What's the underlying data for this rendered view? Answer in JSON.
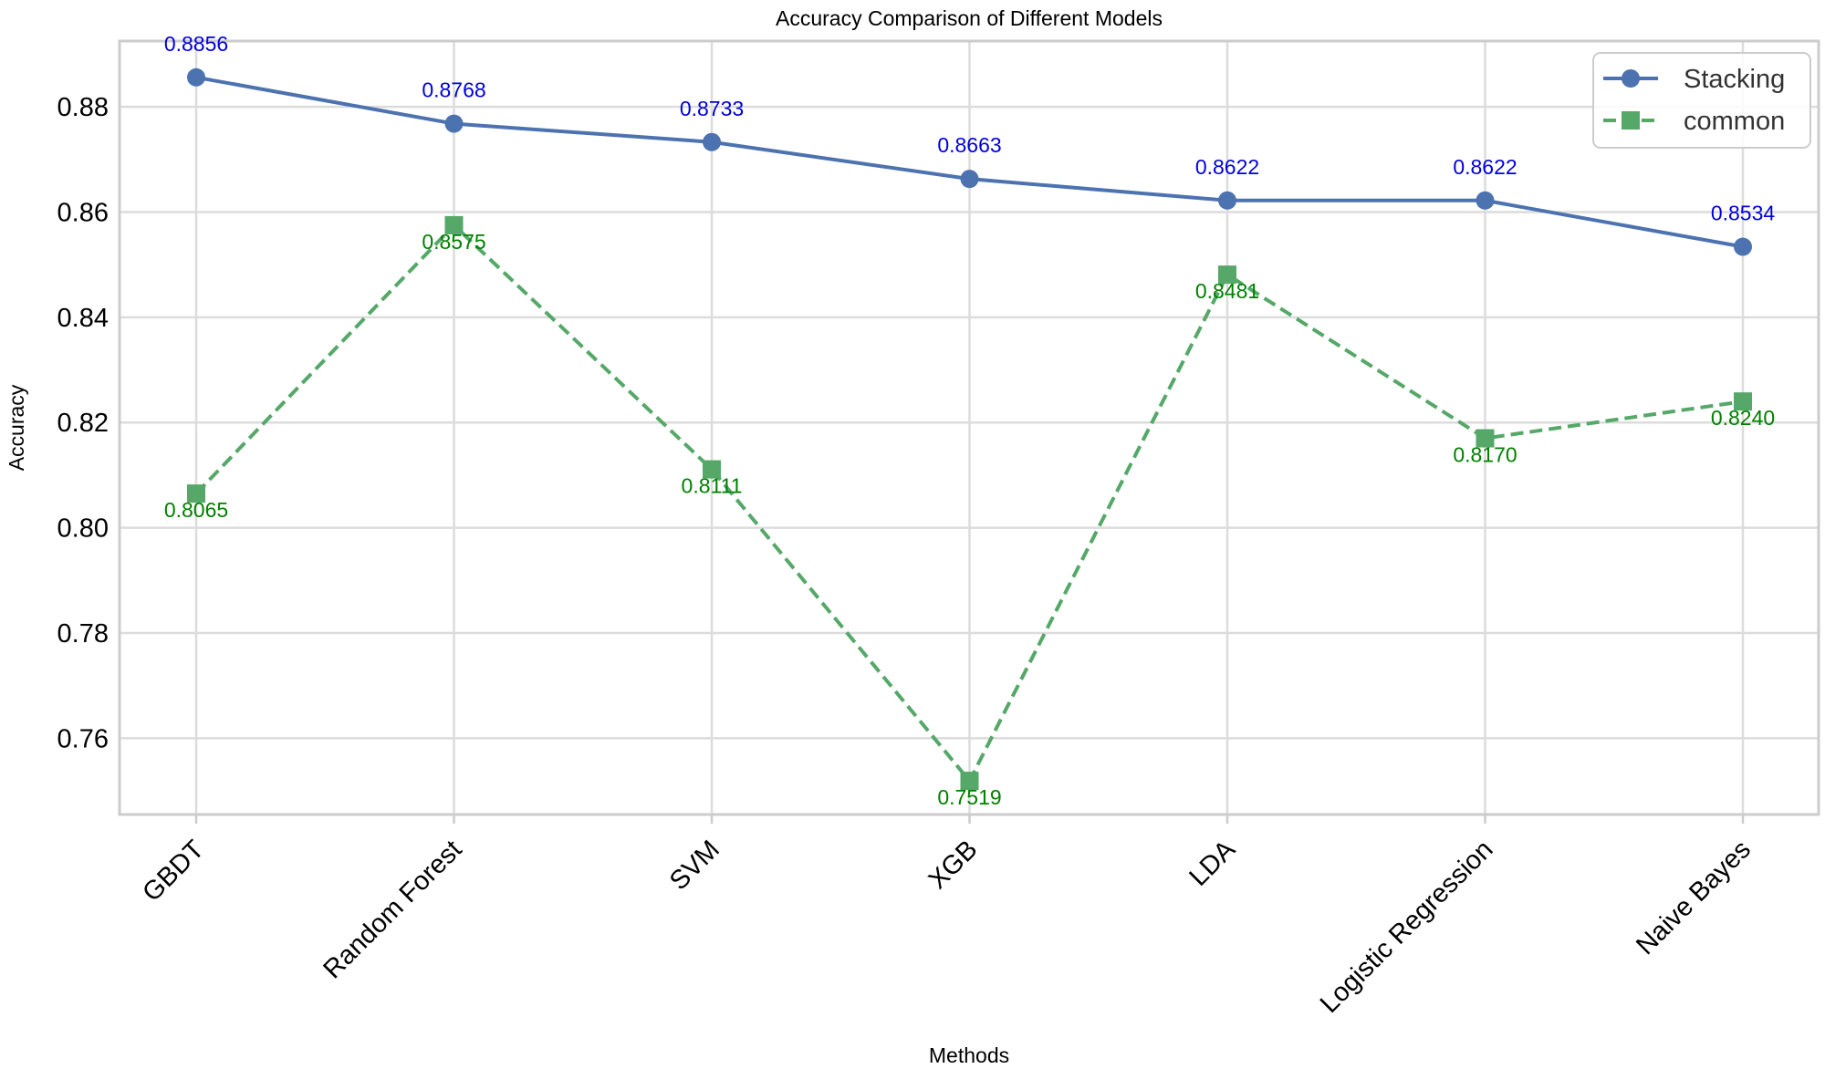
{
  "chart_data": {
    "type": "line",
    "title": "Accuracy Comparison of Different Models",
    "xlabel": "Methods",
    "ylabel": "Accuracy",
    "categories": [
      "GBDT",
      "Random Forest",
      "SVM",
      "XGB",
      "LDA",
      "Logistic Regression",
      "Naive Bayes"
    ],
    "ylim": [
      0.7455,
      0.8925
    ],
    "yticks": [
      0.76,
      0.78,
      0.8,
      0.82,
      0.84,
      0.86,
      0.88
    ],
    "ytick_labels": [
      "0.76",
      "0.78",
      "0.80",
      "0.82",
      "0.84",
      "0.86",
      "0.88"
    ],
    "grid": true,
    "legend_position": "top-right",
    "series": [
      {
        "name": "Stacking",
        "values": [
          0.8856,
          0.8768,
          0.8733,
          0.8663,
          0.8622,
          0.8622,
          0.8534
        ],
        "labels": [
          "0.8856",
          "0.8768",
          "0.8733",
          "0.8663",
          "0.8622",
          "0.8622",
          "0.8534"
        ],
        "color": "#4c72b0",
        "label_color": "#0000dd",
        "marker": "circle",
        "linestyle": "solid"
      },
      {
        "name": "common",
        "values": [
          0.8065,
          0.8575,
          0.8111,
          0.7519,
          0.8481,
          0.817,
          0.824
        ],
        "labels": [
          "0.8065",
          "0.8575",
          "0.8111",
          "0.7519",
          "0.8481",
          "0.8170",
          "0.8240"
        ],
        "color": "#55a868",
        "label_color": "#008000",
        "marker": "square",
        "linestyle": "dashed"
      }
    ]
  }
}
